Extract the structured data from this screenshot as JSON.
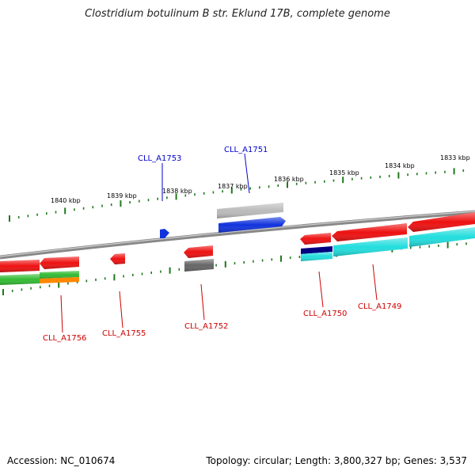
{
  "title": "Clostridium botulinum B str. Eklund 17B, complete genome",
  "footer": {
    "accession": "Accession: NC_010674",
    "stats": "Topology: circular; Length: 3,800,327 bp; Genes: 3,537"
  },
  "scale": {
    "labels": [
      "1840 kbp",
      "1839 kbp",
      "1838 kbp",
      "1837 kbp",
      "1836 kbp",
      "1835 kbp",
      "1834 kbp",
      "1833 kbp"
    ]
  },
  "colors": {
    "backbone": "#808080",
    "tick": "#1e7a1e",
    "forward_label": "#0000cc",
    "reverse_label": "#cc0000",
    "red": "#ee1111",
    "blue": "#1133dd",
    "cyan": "#22dddd",
    "green": "#33bb33",
    "orange": "#ff8800",
    "gray": "#666666",
    "lightgray": "#bbbbbb",
    "navy": "#000080"
  },
  "gene_labels": [
    {
      "text": "CLL_A1753",
      "strand": "forward"
    },
    {
      "text": "CLL_A1751",
      "strand": "forward"
    },
    {
      "text": "CLL_A1756",
      "strand": "reverse"
    },
    {
      "text": "CLL_A1755",
      "strand": "reverse"
    },
    {
      "text": "CLL_A1752",
      "strand": "reverse"
    },
    {
      "text": "CLL_A1750",
      "strand": "reverse"
    },
    {
      "text": "CLL_A1749",
      "strand": "reverse"
    }
  ]
}
